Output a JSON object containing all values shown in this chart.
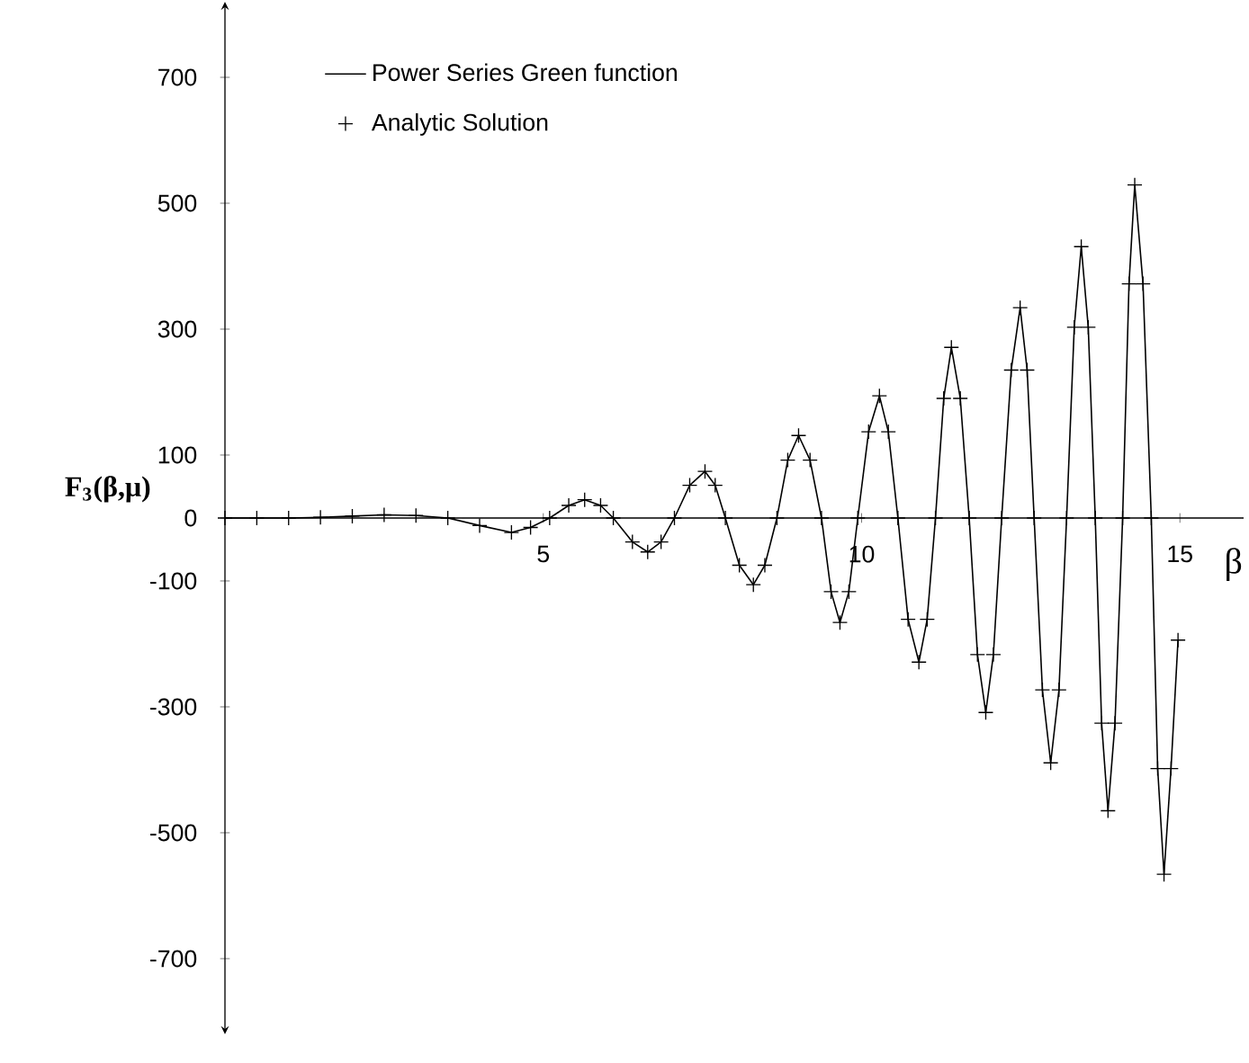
{
  "chart_data": {
    "type": "line",
    "xlabel": "β",
    "ylabel": "F$_{3}$(β,μ)",
    "xlim": [
      0,
      16
    ],
    "ylim": [
      -820,
      820
    ],
    "xticks": [
      5,
      10,
      15
    ],
    "yticks": [
      700,
      500,
      300,
      100,
      0,
      -100,
      -300,
      -500,
      -700
    ],
    "grid": false,
    "legend": "top left",
    "x": [
      0,
      0.5,
      1,
      1.5,
      2,
      2.5,
      3,
      3.5,
      4,
      4.5,
      4.8,
      5.1,
      5.4,
      5.65,
      5.9,
      6.1,
      6.4,
      6.64,
      6.85,
      7.06,
      7.3,
      7.54,
      7.7,
      7.86,
      8.08,
      8.3,
      8.48,
      8.67,
      8.84,
      9.01,
      9.19,
      9.37,
      9.52,
      9.66,
      9.8,
      9.94,
      10.11,
      10.28,
      10.42,
      10.57,
      10.73,
      10.9,
      11.03,
      11.16,
      11.29,
      11.41,
      11.55,
      11.69,
      11.82,
      11.95,
      12.07,
      12.2,
      12.35,
      12.49,
      12.6,
      12.71,
      12.84,
      12.97,
      13.1,
      13.22,
      13.34,
      13.45,
      13.56,
      13.67,
      13.77,
      13.87,
      13.98,
      14.1,
      14.2,
      14.29,
      14.42,
      14.55,
      14.65,
      14.75,
      14.86,
      14.97
    ],
    "series": [
      {
        "name": "Power Series Green function",
        "color": "#000000",
        "values": [
          0,
          0,
          0,
          1,
          3,
          5,
          4,
          0,
          -12,
          -23,
          -15,
          0,
          20,
          29,
          20,
          0,
          -38,
          -54,
          -38,
          0,
          52,
          74,
          52,
          0,
          -75,
          -106,
          -75,
          0,
          92,
          131,
          92,
          0,
          -117,
          -166,
          -117,
          0,
          137,
          194,
          137,
          0,
          -161,
          -229,
          -161,
          0,
          190,
          271,
          190,
          0,
          -217,
          -309,
          -217,
          0,
          235,
          334,
          235,
          0,
          -273,
          -389,
          -273,
          0,
          303,
          431,
          303,
          0,
          -326,
          -465,
          -326,
          0,
          372,
          529,
          372,
          0,
          -398,
          -566,
          -398,
          -194
        ]
      },
      {
        "name": "Analytic Solution",
        "type": "scatter",
        "marker": "cross",
        "color": "#000000",
        "values": [
          0,
          0,
          0,
          1,
          3,
          5,
          4,
          0,
          -12,
          -23,
          -15,
          0,
          20,
          29,
          20,
          0,
          -38,
          -54,
          -38,
          0,
          52,
          74,
          52,
          0,
          -75,
          -106,
          -75,
          0,
          92,
          131,
          92,
          0,
          -117,
          -166,
          -117,
          0,
          137,
          194,
          137,
          0,
          -161,
          -229,
          -161,
          0,
          190,
          271,
          190,
          0,
          -217,
          -309,
          -217,
          0,
          235,
          334,
          235,
          0,
          -273,
          -389,
          -273,
          0,
          303,
          431,
          303,
          0,
          -326,
          -465,
          -326,
          0,
          372,
          529,
          372,
          0,
          -398,
          -566,
          -398,
          -194
        ]
      }
    ]
  }
}
